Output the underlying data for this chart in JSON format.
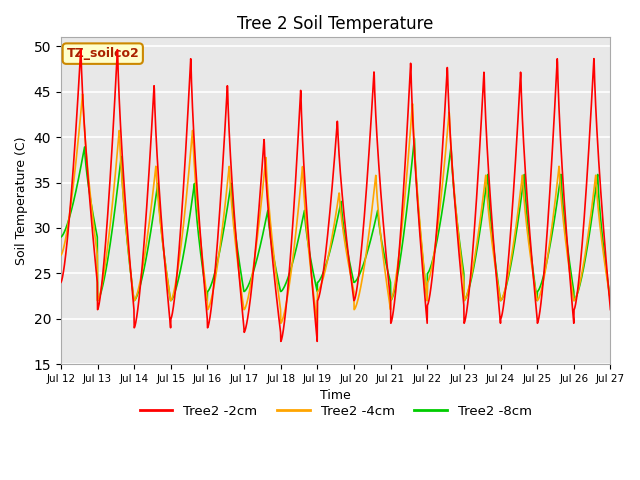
{
  "title": "Tree 2 Soil Temperature",
  "xlabel": "Time",
  "ylabel": "Soil Temperature (C)",
  "ylim": [
    15,
    51
  ],
  "yticks": [
    15,
    20,
    25,
    30,
    35,
    40,
    45,
    50
  ],
  "line_colors": {
    "2cm": "#ff0000",
    "4cm": "#ffa500",
    "8cm": "#00cc00"
  },
  "line_widths": {
    "2cm": 1.2,
    "4cm": 1.2,
    "8cm": 1.2
  },
  "legend_labels": [
    "Tree2 -2cm",
    "Tree2 -4cm",
    "Tree2 -8cm"
  ],
  "annotation_text": "TZ_soilco2",
  "background_color": "#e8e8e8",
  "figure_color": "#ffffff",
  "n_days": 15,
  "start_day": 12,
  "points_per_day": 144,
  "day_peaks_2cm": [
    50,
    50,
    46,
    49,
    46,
    40,
    45.5,
    42,
    47.5,
    48.5,
    48,
    47.5,
    47.5,
    49,
    49
  ],
  "day_mins_2cm": [
    24,
    21,
    19,
    20,
    19,
    18.5,
    17.5,
    22,
    22,
    19.5,
    21.5,
    19.5,
    20,
    19.5,
    21
  ],
  "day_peaks_4cm": [
    45,
    41,
    37,
    41,
    37,
    38,
    37,
    34,
    36,
    44,
    43,
    36,
    36,
    37,
    36
  ],
  "day_mins_4cm": [
    27,
    22,
    22,
    22,
    21,
    21,
    19.5,
    23,
    21,
    22,
    24,
    22,
    22,
    22,
    22
  ],
  "day_peaks_8cm": [
    39,
    38,
    35,
    35,
    35,
    32,
    32,
    33,
    32,
    40,
    39,
    36,
    36,
    36,
    36
  ],
  "day_mins_8cm": [
    29,
    22,
    22,
    22,
    23,
    23,
    23,
    24,
    24,
    22,
    25,
    22,
    22,
    23,
    22
  ],
  "phase_2cm": 0.55,
  "phase_4cm": 0.6,
  "phase_8cm": 0.65
}
